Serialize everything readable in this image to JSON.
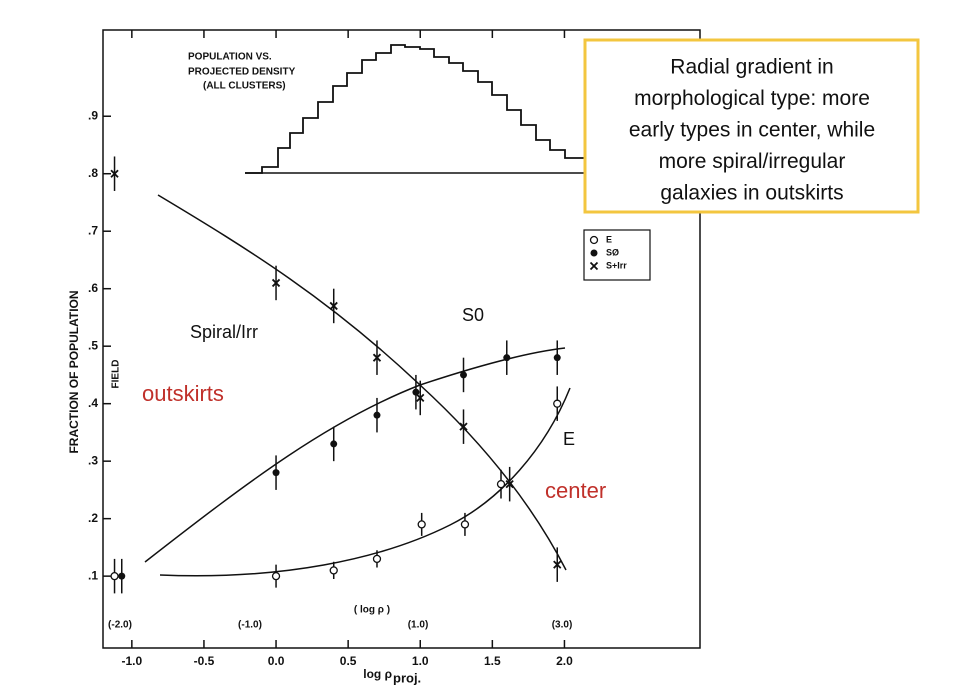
{
  "chart_data": {
    "type": "scatter",
    "title": [
      "POPULATION VS.",
      "PROJECTED DENSITY",
      "(ALL CLUSTERS)"
    ],
    "xlabel": "log ρ",
    "xlabel_sub": "proj.",
    "ylabel": "FRACTION OF POPULATION",
    "field_label": "FIELD",
    "top_axis_title": "( log ρ )",
    "top_axis_labels": [
      "(-2.0)",
      "(-1.0)",
      "(1.0)",
      "(3.0)"
    ],
    "xlim": [
      -1.2,
      2.94
    ],
    "ylim": [
      -0.025,
      1.05
    ],
    "xticks": [
      {
        "value": -1.0,
        "label": "-1.0"
      },
      {
        "value": -0.5,
        "label": "-0.5"
      },
      {
        "value": 0,
        "label": "0.0"
      },
      {
        "value": 0.5,
        "label": "0.5"
      },
      {
        "value": 1.0,
        "label": "1.0"
      },
      {
        "value": 1.5,
        "label": "1.5"
      },
      {
        "value": 2.0,
        "label": "2.0"
      }
    ],
    "yticks": [
      {
        "value": 0.1,
        "label": ".1"
      },
      {
        "value": 0.2,
        "label": ".2"
      },
      {
        "value": 0.3,
        "label": ".3"
      },
      {
        "value": 0.4,
        "label": ".4"
      },
      {
        "value": 0.5,
        "label": ".5"
      },
      {
        "value": 0.6,
        "label": ".6"
      },
      {
        "value": 0.7,
        "label": ".7"
      },
      {
        "value": 0.8,
        "label": ".8"
      },
      {
        "value": 0.9,
        "label": ".9"
      }
    ],
    "series": [
      {
        "name": "E",
        "marker": "open",
        "color": "#111111",
        "x": [
          -1.12,
          0,
          0.4,
          0.7,
          1.01,
          1.31,
          1.56,
          1.95
        ],
        "values": [
          0.1,
          0.1,
          0.11,
          0.13,
          0.19,
          0.19,
          0.26,
          0.4
        ],
        "errors": [
          0.03,
          0.02,
          0.015,
          0.015,
          0.02,
          0.02,
          0.025,
          0.03
        ]
      },
      {
        "name": "SØ",
        "marker": "filled",
        "color": "#111111",
        "x": [
          -1.07,
          0,
          0.4,
          0.7,
          0.97,
          1.3,
          1.6,
          1.95
        ],
        "values": [
          0.1,
          0.28,
          0.33,
          0.38,
          0.42,
          0.45,
          0.48,
          0.48
        ],
        "errors": [
          0.03,
          0.03,
          0.03,
          0.03,
          0.03,
          0.03,
          0.03,
          0.03
        ]
      },
      {
        "name": "S+Irr",
        "marker": "cross",
        "color": "#111111",
        "x": [
          -1.12,
          0,
          0.4,
          0.7,
          1.0,
          1.3,
          1.62,
          1.95
        ],
        "values": [
          0.8,
          0.61,
          0.57,
          0.48,
          0.41,
          0.36,
          0.26,
          0.12
        ],
        "errors": [
          0.03,
          0.03,
          0.03,
          0.03,
          0.03,
          0.03,
          0.03,
          0.03
        ]
      }
    ],
    "annotations": {
      "spiral": "Spiral/Irr",
      "s0": "S0",
      "e": "E",
      "outskirts": "outskirts",
      "center": "center"
    },
    "callout": [
      "Radial gradient in",
      "morphological type: more",
      "early types in center, while",
      "more spiral/irregular",
      "galaxies in outskirts"
    ]
  }
}
